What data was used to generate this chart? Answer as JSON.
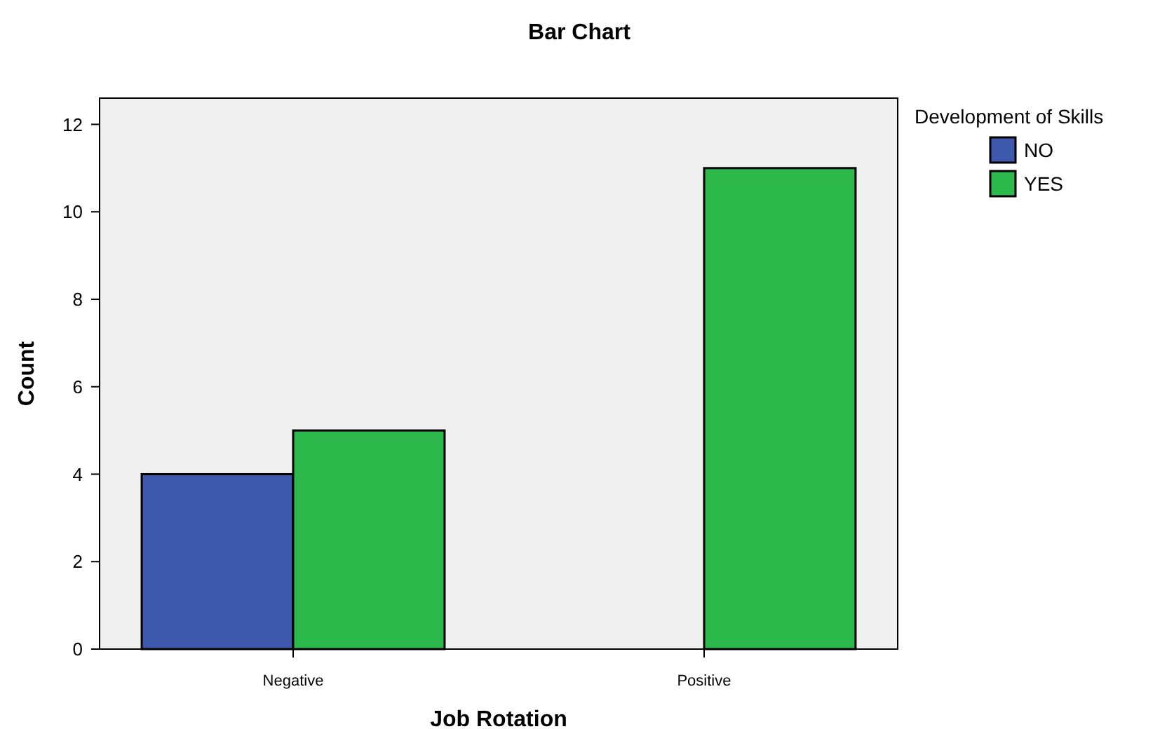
{
  "chart_data": {
    "type": "bar",
    "title": "Bar Chart",
    "xlabel": "Job Rotation",
    "ylabel": "Count",
    "legend_title": "Development of Skills",
    "categories": [
      "Negative",
      "Positive"
    ],
    "series": [
      {
        "name": "NO",
        "color": "#3e58ac",
        "values": [
          4,
          0
        ]
      },
      {
        "name": "YES",
        "color": "#2db84b",
        "values": [
          5,
          11
        ]
      }
    ],
    "ylim": [
      0,
      12.6
    ],
    "yticks": [
      0,
      2,
      4,
      6,
      8,
      10,
      12
    ],
    "grid": false,
    "legend": "top right"
  }
}
